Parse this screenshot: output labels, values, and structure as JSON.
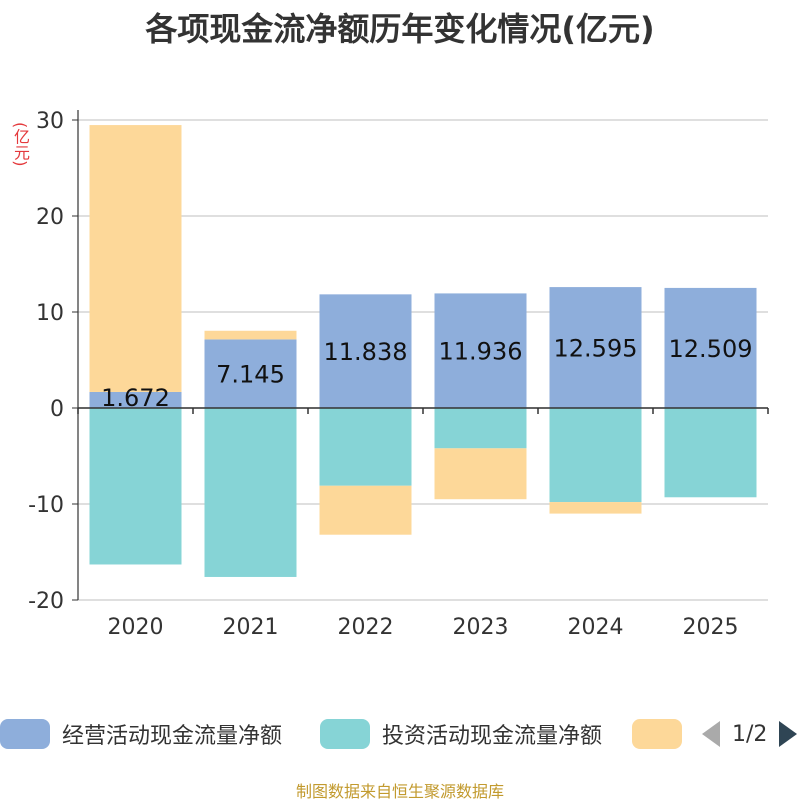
{
  "chart_data": {
    "type": "bar",
    "stacked": true,
    "title": "各项现金流净额历年变化情况(亿元)",
    "ylabel": "(亿元)",
    "ylim": [
      -20,
      30
    ],
    "yticks": [
      -20,
      -10,
      0,
      10,
      20,
      30
    ],
    "categories": [
      "2020",
      "2021",
      "2022",
      "2023",
      "2024",
      "2025"
    ],
    "series": [
      {
        "name": "经营活动现金流量净额",
        "color": "#8eaedb",
        "values": [
          1.672,
          7.145,
          11.838,
          11.936,
          12.595,
          12.509
        ],
        "labels": [
          "1.672",
          "7.145",
          "11.838",
          "11.936",
          "12.595",
          "12.509"
        ]
      },
      {
        "name": "投资活动现金流量净额",
        "color": "#86d4d6",
        "values": [
          -16.3,
          -17.6,
          -8.1,
          -4.2,
          -9.8,
          -9.3
        ]
      },
      {
        "name": "",
        "color": "#fdd899",
        "values": [
          27.8,
          0.9,
          -5.1,
          -5.3,
          -1.2,
          0
        ]
      }
    ]
  },
  "legend": {
    "items": [
      {
        "label": "经营活动现金流量净额",
        "color": "#8eaedb"
      },
      {
        "label": "投资活动现金流量净额",
        "color": "#86d4d6"
      },
      {
        "label": "",
        "color": "#fdd899"
      }
    ],
    "page_indicator": "1/2"
  },
  "footer": "制图数据来自恒生聚源数据库"
}
